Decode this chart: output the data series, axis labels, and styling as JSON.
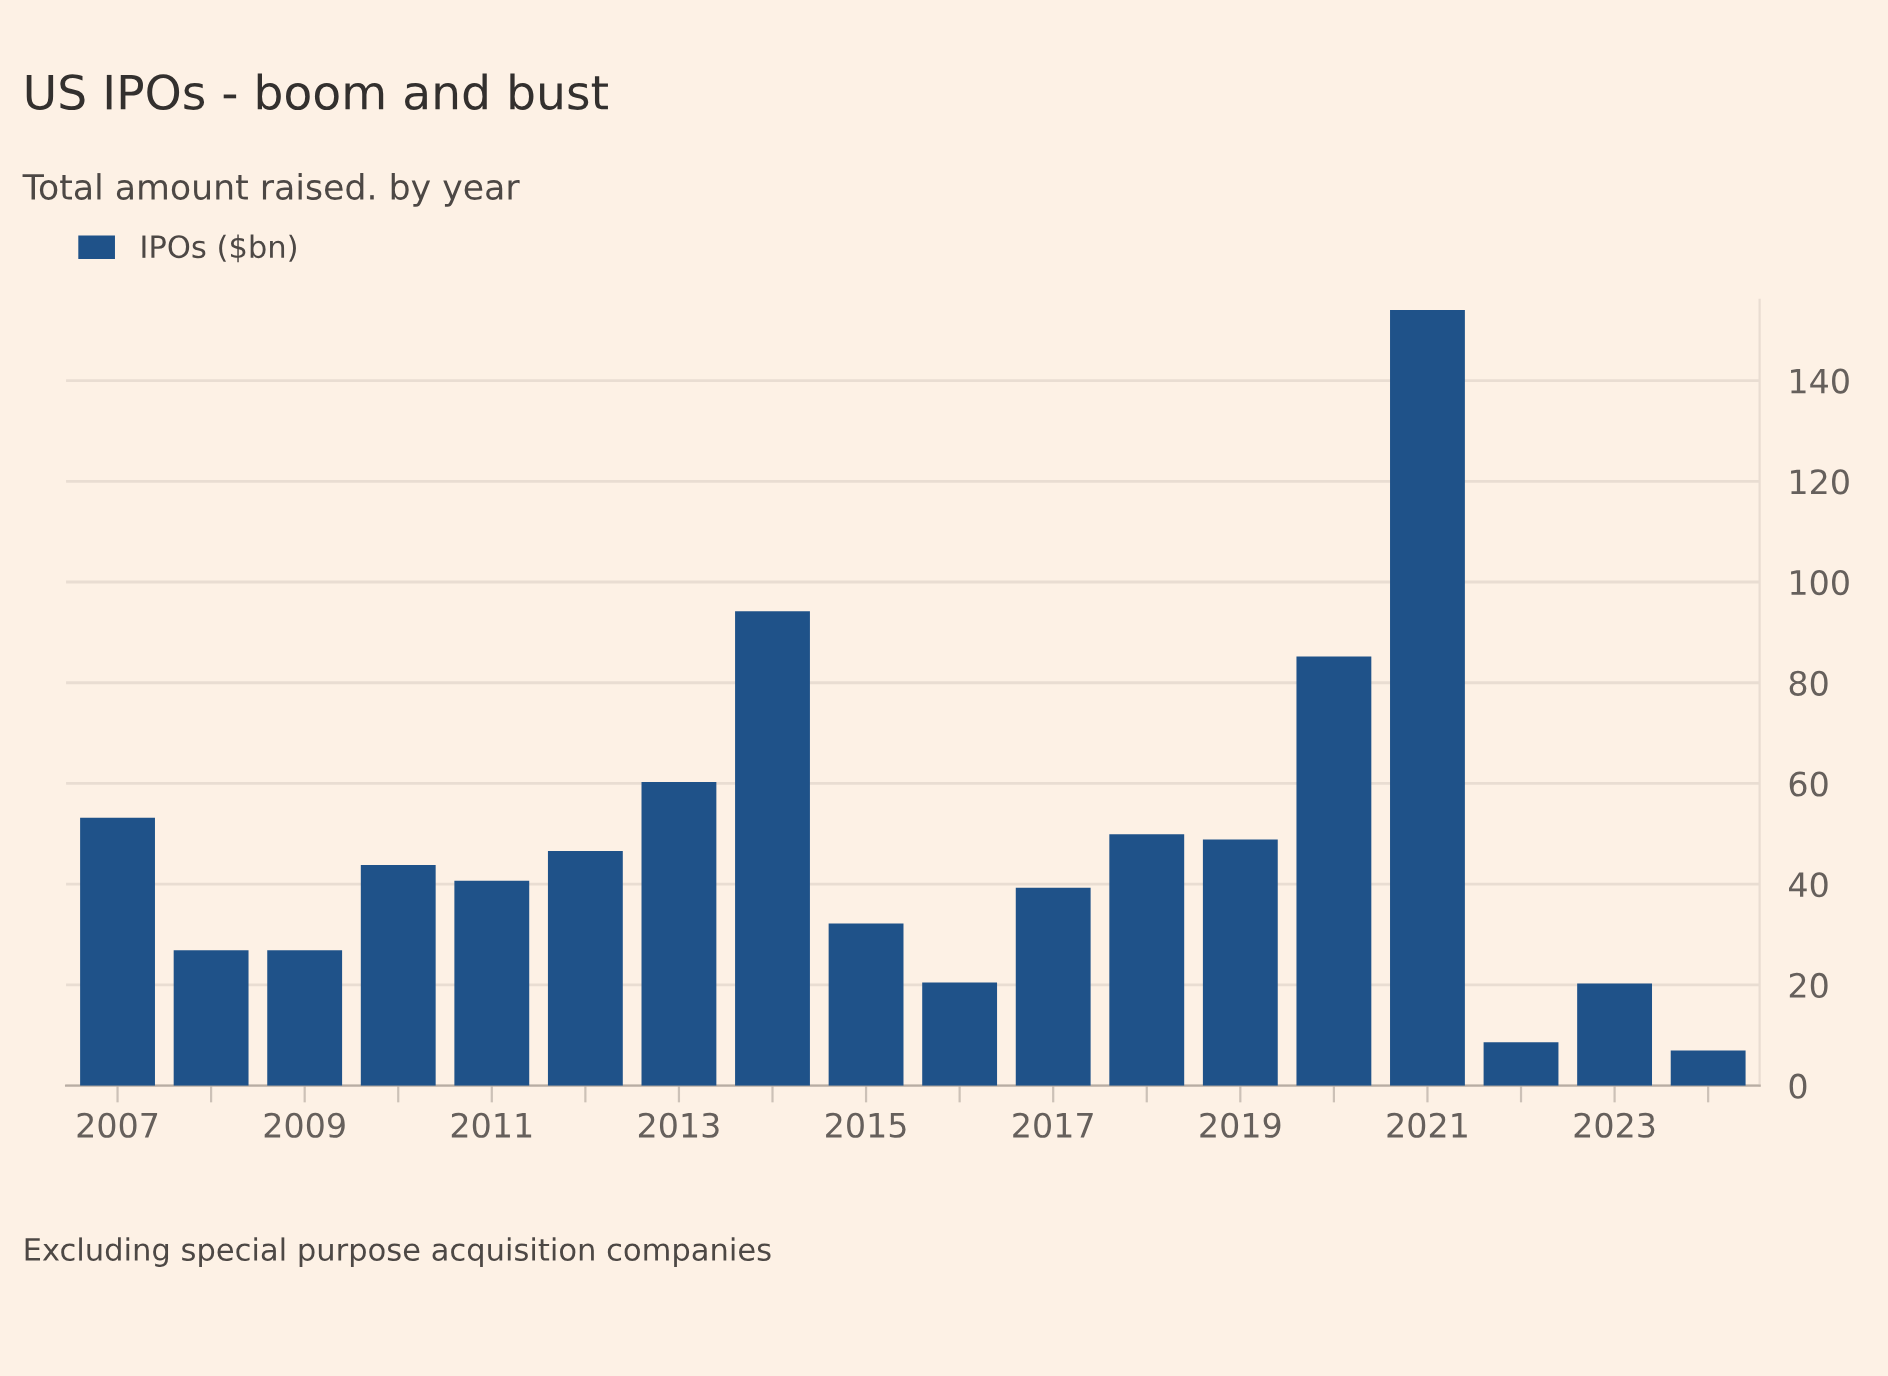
{
  "chart_data": {
    "type": "bar",
    "title": "US IPOs - boom and bust",
    "subtitle": "Total amount raised. by year",
    "categories": [
      "2007",
      null,
      "2009",
      null,
      "2011",
      null,
      "2013",
      null,
      "2015",
      null,
      "2017",
      null,
      "2019",
      null,
      "2021",
      null,
      "2023",
      null
    ],
    "series": [
      {
        "name": "IPOs ($bn)",
        "color": "#1f5289",
        "values": [
          53.2,
          26.9,
          26.9,
          43.8,
          40.7,
          46.6,
          60.3,
          94.2,
          32.2,
          20.5,
          39.3,
          49.9,
          48.9,
          85.2,
          154,
          8.6,
          20.3,
          7.0
        ]
      }
    ],
    "ylim": [
      0,
      156
    ],
    "yticks": [
      0,
      20,
      40,
      60,
      80,
      100,
      120,
      140
    ],
    "grid": "y",
    "legend": "top left",
    "annotations": [
      "Excluding special purpose acquisition companies"
    ]
  }
}
